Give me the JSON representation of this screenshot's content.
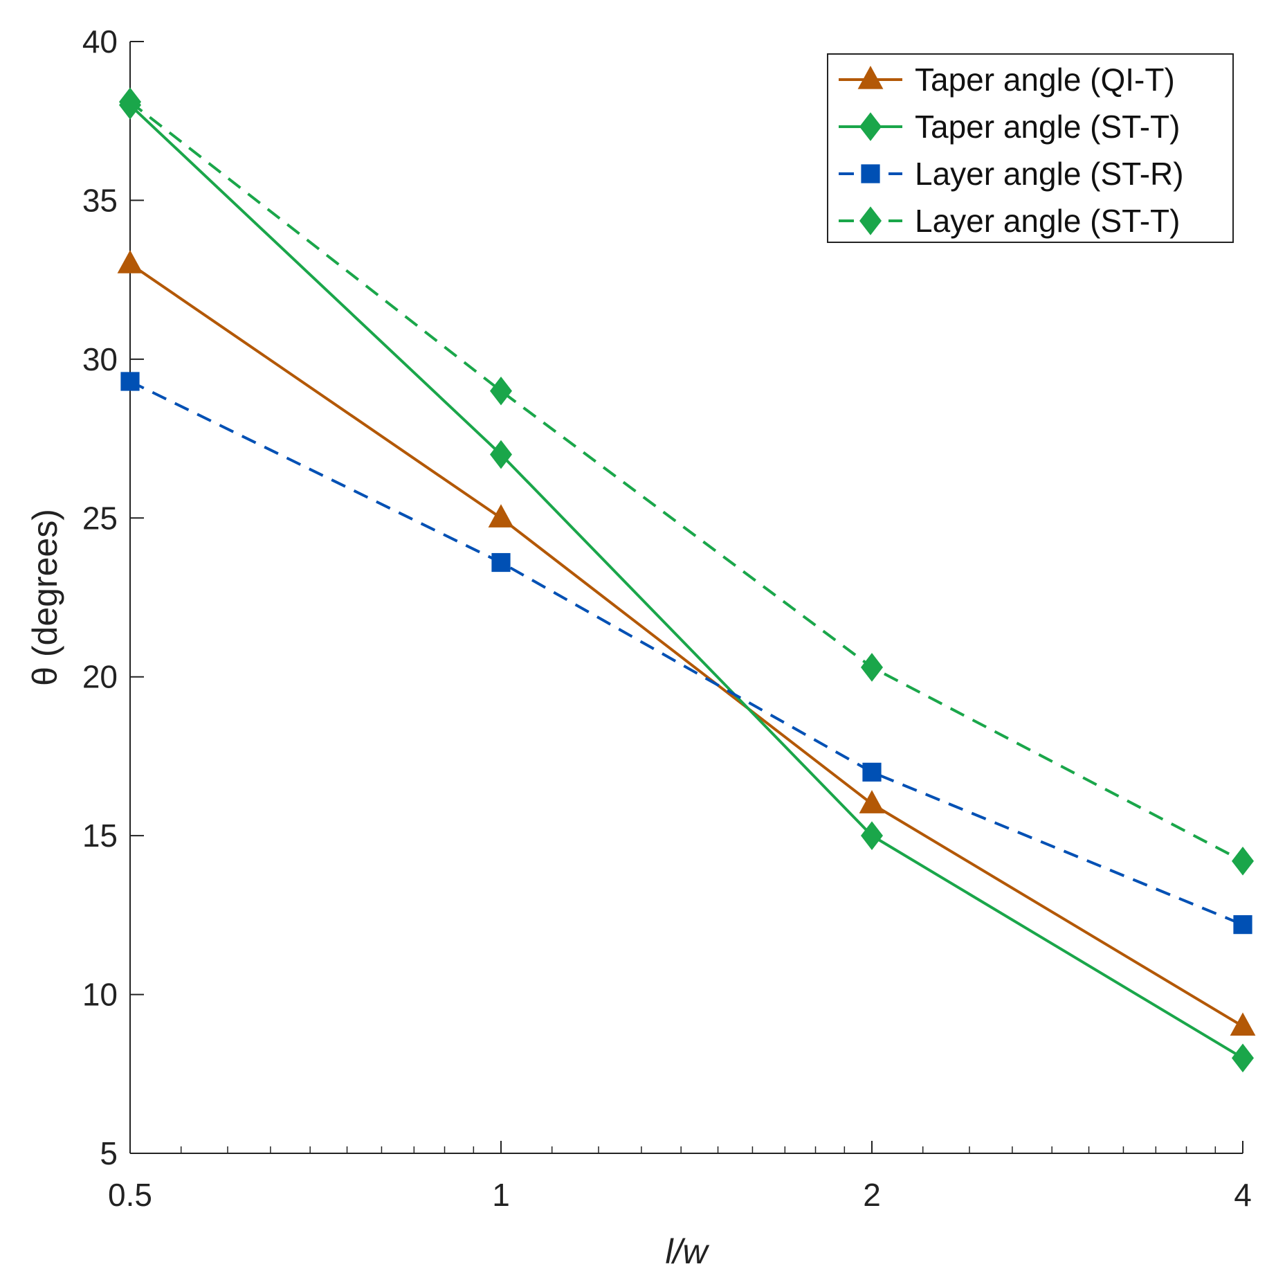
{
  "chart_data": {
    "type": "line",
    "xscale": "log2",
    "x": [
      0.5,
      1,
      2,
      4
    ],
    "xticks": [
      "0.5",
      "1",
      "2",
      "4"
    ],
    "yticks": [
      "5",
      "10",
      "15",
      "20",
      "25",
      "30",
      "35",
      "40"
    ],
    "xlim": [
      0.5,
      4
    ],
    "ylim": [
      5,
      40
    ],
    "xlabel": "l/w",
    "ylabel": "θ (degrees)",
    "grid": false,
    "legend_position": "top-right",
    "series": [
      {
        "name": "Taper angle (QI-T)",
        "values": [
          33.0,
          25.0,
          16.0,
          9.0
        ],
        "color": "#b35806",
        "marker": "triangle",
        "dash": "solid"
      },
      {
        "name": "Taper angle (ST-T)",
        "values": [
          38.0,
          27.0,
          15.0,
          8.0
        ],
        "color": "#1aa64a",
        "marker": "diamond",
        "dash": "solid"
      },
      {
        "name": "Layer angle (ST-R)",
        "values": [
          29.3,
          23.6,
          17.0,
          12.2
        ],
        "color": "#0050b4",
        "marker": "square",
        "dash": "dashed"
      },
      {
        "name": "Layer angle (ST-T)",
        "values": [
          38.1,
          29.0,
          20.3,
          14.2
        ],
        "color": "#1aa64a",
        "marker": "diamond",
        "dash": "dashed"
      }
    ]
  }
}
